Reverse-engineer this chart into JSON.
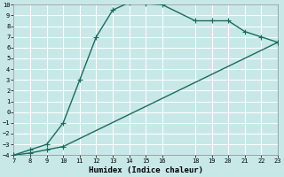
{
  "xlabel": "Humidex (Indice chaleur)",
  "bg_color": "#c8e8e8",
  "line_color": "#1a6b5a",
  "grid_color": "#b0d8d8",
  "x_upper": [
    7,
    8,
    9,
    10,
    11,
    12,
    13,
    14,
    15,
    16,
    18,
    19,
    20,
    21,
    22,
    23
  ],
  "y_upper": [
    -4,
    -3.5,
    -3.0,
    -1.0,
    3.0,
    7.0,
    9.5,
    10.2,
    10.1,
    10.0,
    8.5,
    8.5,
    8.5,
    7.5,
    7.0,
    6.5
  ],
  "x_lower": [
    7,
    8,
    9,
    10,
    23
  ],
  "y_lower": [
    -4,
    -3.8,
    -3.5,
    -3.2,
    6.5
  ],
  "xlim": [
    7,
    23
  ],
  "ylim": [
    -4,
    10
  ],
  "xticks": [
    7,
    8,
    9,
    10,
    11,
    12,
    13,
    14,
    15,
    16,
    18,
    19,
    20,
    21,
    22,
    23
  ],
  "yticks": [
    -4,
    -3,
    -2,
    -1,
    0,
    1,
    2,
    3,
    4,
    5,
    6,
    7,
    8,
    9,
    10
  ],
  "marker_size": 2.5,
  "linewidth": 1.0
}
